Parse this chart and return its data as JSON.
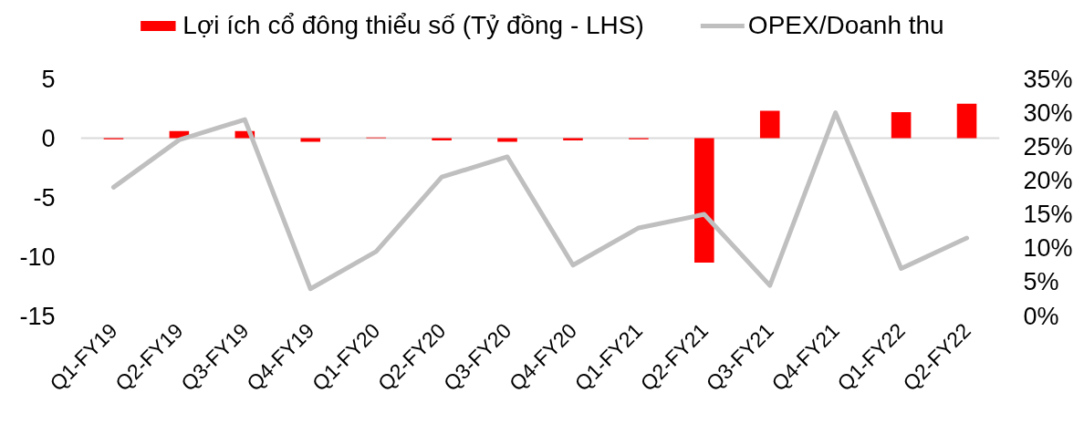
{
  "chart_data": {
    "type": "bar",
    "categories": [
      "Q1-FY19",
      "Q2-FY19",
      "Q3-FY19",
      "Q4-FY19",
      "Q1-FY20",
      "Q2-FY20",
      "Q3-FY20",
      "Q4-FY20",
      "Q1-FY21",
      "Q2-FY21",
      "Q3-FY21",
      "Q4-FY21",
      "Q1-FY22",
      "Q2-FY22"
    ],
    "series": [
      {
        "name": "Lợi ích cổ đông thiểu số (Tỷ đồng - LHS)",
        "color": "#ff0000",
        "values": [
          -0.1,
          0.6,
          0.6,
          -0.3,
          0.05,
          -0.2,
          -0.3,
          -0.2,
          -0.1,
          -10.5,
          2.3,
          null,
          2.2,
          2.9
        ]
      },
      {
        "name": "OPEX/Doanh thu",
        "type": "line",
        "axis": "y2",
        "color": "#bfbfbf",
        "values": [
          19,
          26,
          29,
          4,
          9.5,
          20.5,
          23.5,
          7.5,
          13,
          15,
          4.5,
          30,
          7,
          11.5
        ]
      }
    ],
    "ylim": [
      -15,
      5
    ],
    "yticks": [
      -15,
      -10,
      -5,
      0,
      5
    ],
    "y2lim": [
      0,
      35
    ],
    "y2ticks": [
      {
        "value": 0,
        "label": "0%"
      },
      {
        "value": 5,
        "label": "5%"
      },
      {
        "value": 10,
        "label": "10%"
      },
      {
        "value": 15,
        "label": "15%"
      },
      {
        "value": 20,
        "label": "20%"
      },
      {
        "value": 25,
        "label": "25%"
      },
      {
        "value": 30,
        "label": "30%"
      },
      {
        "value": 35,
        "label": "35%"
      }
    ],
    "ref_lines": [
      {
        "axis": "y",
        "value": 0,
        "color": "#d9d9d9"
      }
    ],
    "legend": "top"
  }
}
